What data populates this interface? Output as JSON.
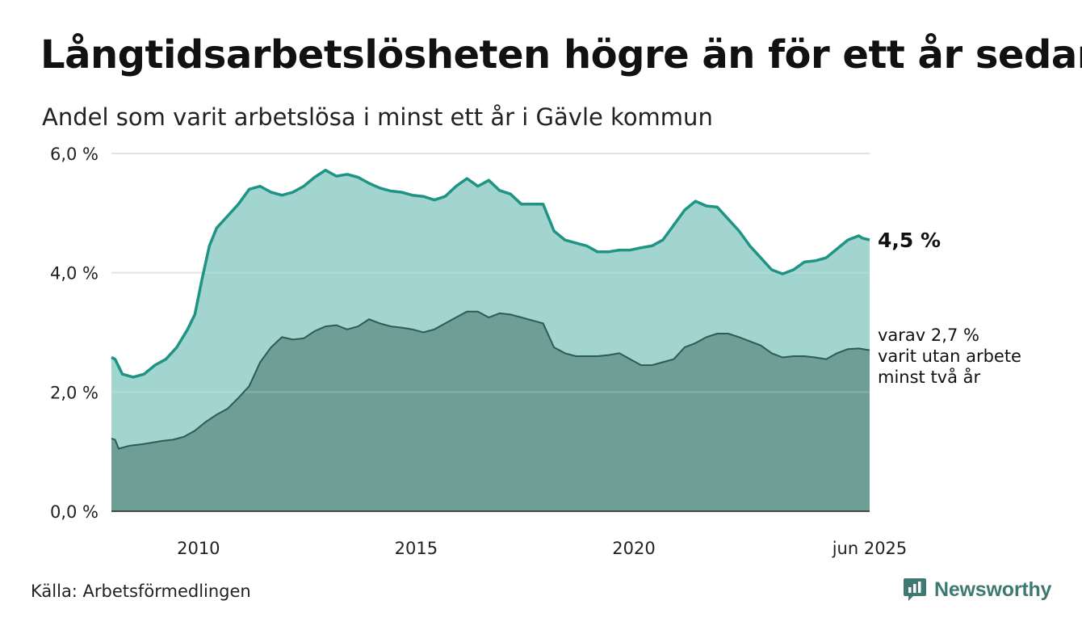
{
  "title": "Långtidsarbetslösheten högre än för ett år sedan",
  "subtitle": "Andel som varit arbetslösa i minst ett år i Gävle kommun",
  "source": "Källa: Arbetsförmedlingen",
  "brand": "Newsworthy",
  "colors": {
    "outer_fill": "#a2d5d0",
    "outer_line": "#1f9484",
    "inner_fill": "#6f9e97",
    "inner_line": "#2f5b55",
    "grid": "#dcdcdc",
    "brand": "#3f7a72"
  },
  "chart_data": {
    "type": "area",
    "x_range": [
      "2008-01",
      "2025-06"
    ],
    "ylim": [
      0,
      6
    ],
    "y_ticks": [
      "0,0 %",
      "2,0 %",
      "4,0 %",
      "6,0 %"
    ],
    "y_tick_values": [
      0,
      2,
      4,
      6
    ],
    "x_ticks": [
      "2010",
      "2015",
      "2020",
      "jun 2025"
    ],
    "x_tick_dates": [
      "2010-01",
      "2015-01",
      "2020-01",
      "2025-06"
    ],
    "series": [
      {
        "end_label": "4,5 %",
        "points": [
          [
            "2008-01",
            2.58
          ],
          [
            "2008-02",
            2.55
          ],
          [
            "2008-04",
            2.3
          ],
          [
            "2008-07",
            2.25
          ],
          [
            "2008-10",
            2.3
          ],
          [
            "2009-01",
            2.45
          ],
          [
            "2009-04",
            2.55
          ],
          [
            "2009-07",
            2.75
          ],
          [
            "2009-10",
            3.05
          ],
          [
            "2009-12",
            3.3
          ],
          [
            "2010-02",
            3.9
          ],
          [
            "2010-04",
            4.45
          ],
          [
            "2010-06",
            4.75
          ],
          [
            "2010-09",
            4.95
          ],
          [
            "2010-12",
            5.15
          ],
          [
            "2011-03",
            5.4
          ],
          [
            "2011-06",
            5.45
          ],
          [
            "2011-09",
            5.35
          ],
          [
            "2011-12",
            5.3
          ],
          [
            "2012-03",
            5.35
          ],
          [
            "2012-06",
            5.45
          ],
          [
            "2012-09",
            5.6
          ],
          [
            "2012-12",
            5.72
          ],
          [
            "2013-03",
            5.62
          ],
          [
            "2013-06",
            5.65
          ],
          [
            "2013-09",
            5.6
          ],
          [
            "2013-12",
            5.5
          ],
          [
            "2014-03",
            5.42
          ],
          [
            "2014-06",
            5.37
          ],
          [
            "2014-09",
            5.35
          ],
          [
            "2014-12",
            5.3
          ],
          [
            "2015-03",
            5.28
          ],
          [
            "2015-06",
            5.22
          ],
          [
            "2015-09",
            5.28
          ],
          [
            "2015-12",
            5.45
          ],
          [
            "2016-03",
            5.58
          ],
          [
            "2016-06",
            5.45
          ],
          [
            "2016-09",
            5.55
          ],
          [
            "2016-12",
            5.38
          ],
          [
            "2017-03",
            5.32
          ],
          [
            "2017-06",
            5.15
          ],
          [
            "2017-09",
            5.15
          ],
          [
            "2017-12",
            5.15
          ],
          [
            "2018-03",
            4.7
          ],
          [
            "2018-06",
            4.55
          ],
          [
            "2018-09",
            4.5
          ],
          [
            "2018-12",
            4.45
          ],
          [
            "2019-03",
            4.35
          ],
          [
            "2019-06",
            4.35
          ],
          [
            "2019-09",
            4.38
          ],
          [
            "2019-12",
            4.38
          ],
          [
            "2020-03",
            4.42
          ],
          [
            "2020-06",
            4.45
          ],
          [
            "2020-09",
            4.55
          ],
          [
            "2020-12",
            4.8
          ],
          [
            "2021-03",
            5.05
          ],
          [
            "2021-06",
            5.2
          ],
          [
            "2021-09",
            5.12
          ],
          [
            "2021-12",
            5.1
          ],
          [
            "2022-03",
            4.9
          ],
          [
            "2022-06",
            4.7
          ],
          [
            "2022-09",
            4.45
          ],
          [
            "2022-12",
            4.25
          ],
          [
            "2023-03",
            4.05
          ],
          [
            "2023-06",
            3.98
          ],
          [
            "2023-09",
            4.05
          ],
          [
            "2023-12",
            4.18
          ],
          [
            "2024-03",
            4.2
          ],
          [
            "2024-06",
            4.25
          ],
          [
            "2024-09",
            4.4
          ],
          [
            "2024-12",
            4.55
          ],
          [
            "2025-03",
            4.62
          ],
          [
            "2025-04",
            4.58
          ],
          [
            "2025-06",
            4.55
          ]
        ]
      },
      {
        "end_label_lines": [
          "varav 2,7 %",
          "varit utan arbete",
          "minst två år"
        ],
        "points": [
          [
            "2008-01",
            1.22
          ],
          [
            "2008-02",
            1.2
          ],
          [
            "2008-03",
            1.05
          ],
          [
            "2008-06",
            1.1
          ],
          [
            "2008-09",
            1.12
          ],
          [
            "2008-12",
            1.15
          ],
          [
            "2009-03",
            1.18
          ],
          [
            "2009-06",
            1.2
          ],
          [
            "2009-09",
            1.25
          ],
          [
            "2009-12",
            1.35
          ],
          [
            "2010-03",
            1.5
          ],
          [
            "2010-06",
            1.62
          ],
          [
            "2010-09",
            1.72
          ],
          [
            "2010-12",
            1.9
          ],
          [
            "2011-03",
            2.1
          ],
          [
            "2011-06",
            2.5
          ],
          [
            "2011-09",
            2.75
          ],
          [
            "2011-12",
            2.92
          ],
          [
            "2012-03",
            2.88
          ],
          [
            "2012-06",
            2.9
          ],
          [
            "2012-09",
            3.02
          ],
          [
            "2012-12",
            3.1
          ],
          [
            "2013-03",
            3.12
          ],
          [
            "2013-06",
            3.05
          ],
          [
            "2013-09",
            3.1
          ],
          [
            "2013-12",
            3.22
          ],
          [
            "2014-03",
            3.15
          ],
          [
            "2014-06",
            3.1
          ],
          [
            "2014-09",
            3.08
          ],
          [
            "2014-12",
            3.05
          ],
          [
            "2015-03",
            3.0
          ],
          [
            "2015-06",
            3.05
          ],
          [
            "2015-09",
            3.15
          ],
          [
            "2015-12",
            3.25
          ],
          [
            "2016-03",
            3.35
          ],
          [
            "2016-06",
            3.35
          ],
          [
            "2016-09",
            3.25
          ],
          [
            "2016-12",
            3.32
          ],
          [
            "2017-03",
            3.3
          ],
          [
            "2017-06",
            3.25
          ],
          [
            "2017-09",
            3.2
          ],
          [
            "2017-12",
            3.15
          ],
          [
            "2018-03",
            2.75
          ],
          [
            "2018-06",
            2.65
          ],
          [
            "2018-09",
            2.6
          ],
          [
            "2018-12",
            2.6
          ],
          [
            "2019-03",
            2.6
          ],
          [
            "2019-06",
            2.62
          ],
          [
            "2019-09",
            2.65
          ],
          [
            "2019-12",
            2.55
          ],
          [
            "2020-03",
            2.45
          ],
          [
            "2020-06",
            2.45
          ],
          [
            "2020-09",
            2.5
          ],
          [
            "2020-12",
            2.55
          ],
          [
            "2021-03",
            2.75
          ],
          [
            "2021-06",
            2.82
          ],
          [
            "2021-09",
            2.92
          ],
          [
            "2021-12",
            2.98
          ],
          [
            "2022-03",
            2.98
          ],
          [
            "2022-06",
            2.92
          ],
          [
            "2022-09",
            2.85
          ],
          [
            "2022-12",
            2.78
          ],
          [
            "2023-03",
            2.65
          ],
          [
            "2023-06",
            2.58
          ],
          [
            "2023-09",
            2.6
          ],
          [
            "2023-12",
            2.6
          ],
          [
            "2024-03",
            2.58
          ],
          [
            "2024-06",
            2.55
          ],
          [
            "2024-09",
            2.65
          ],
          [
            "2024-12",
            2.72
          ],
          [
            "2025-03",
            2.73
          ],
          [
            "2025-06",
            2.7
          ]
        ]
      }
    ]
  }
}
